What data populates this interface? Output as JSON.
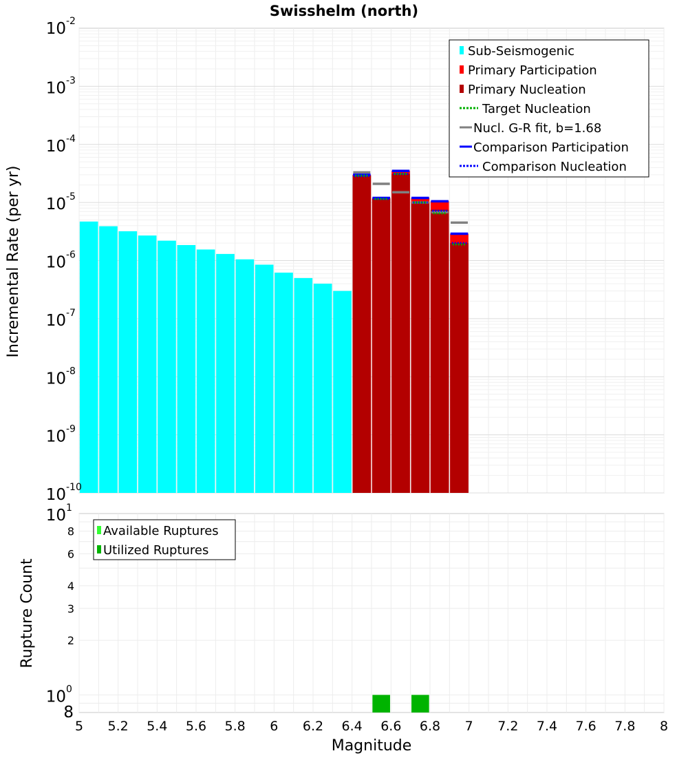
{
  "chart_data": [
    {
      "type": "bar",
      "title": "Swisshelm (north)",
      "xlabel": "",
      "ylabel": "Incremental Rate (per yr)",
      "xlim": [
        5,
        8
      ],
      "ylim": [
        1e-10,
        0.01
      ],
      "yscale": "log",
      "bin_width": 0.1,
      "y_ticks": [
        {
          "value": 0.01,
          "base": "10",
          "exp": "-2"
        },
        {
          "value": 0.001,
          "base": "10",
          "exp": "-3"
        },
        {
          "value": 0.0001,
          "base": "10",
          "exp": "-4"
        },
        {
          "value": 1e-05,
          "base": "10",
          "exp": "-5"
        },
        {
          "value": 1e-06,
          "base": "10",
          "exp": "-6"
        },
        {
          "value": 1e-07,
          "base": "10",
          "exp": "-7"
        },
        {
          "value": 1e-08,
          "base": "10",
          "exp": "-8"
        },
        {
          "value": 1e-09,
          "base": "10",
          "exp": "-9"
        },
        {
          "value": 1e-10,
          "base": "10",
          "exp": "-10"
        }
      ],
      "series": [
        {
          "name": "Sub-Seismogenic",
          "kind": "bar",
          "color": "#00ffff",
          "x": [
            5.05,
            5.15,
            5.25,
            5.35,
            5.45,
            5.55,
            5.65,
            5.75,
            5.85,
            5.95,
            6.05,
            6.15,
            6.25,
            6.35
          ],
          "values": [
            4.7e-06,
            3.9e-06,
            3.2e-06,
            2.7e-06,
            2.2e-06,
            1.85e-06,
            1.55e-06,
            1.3e-06,
            1.05e-06,
            8.5e-07,
            6.2e-07,
            5e-07,
            4e-07,
            3e-07
          ]
        },
        {
          "name": "Primary Participation",
          "kind": "bar",
          "color": "#ff0000",
          "x": [
            6.45,
            6.55,
            6.65,
            6.75,
            6.85,
            6.95
          ],
          "values": [
            3e-05,
            1.2e-05,
            3.5e-05,
            1.2e-05,
            1.05e-05,
            2.9e-06
          ]
        },
        {
          "name": "Primary Nucleation",
          "kind": "bar",
          "color": "#b30000",
          "x": [
            6.45,
            6.55,
            6.65,
            6.75,
            6.85,
            6.95
          ],
          "values": [
            2.9e-05,
            1.15e-05,
            3.1e-05,
            1e-05,
            7.5e-06,
            2e-06
          ]
        },
        {
          "name": "Target Nucleation",
          "kind": "dotted-tick",
          "color": "#00b000",
          "x": [
            6.45,
            6.55,
            6.65,
            6.75,
            6.85,
            6.95
          ],
          "values": [
            2.9e-05,
            1.15e-05,
            3.1e-05,
            1e-05,
            6.5e-06,
            1.9e-06
          ]
        },
        {
          "name": "Nucl. G-R fit, b=1.68",
          "kind": "tick",
          "color": "#808080",
          "x": [
            6.45,
            6.55,
            6.65,
            6.75,
            6.85,
            6.95
          ],
          "values": [
            3.3e-05,
            2.1e-05,
            1.5e-05,
            1e-05,
            6.8e-06,
            4.5e-06
          ]
        },
        {
          "name": "Comparison Participation",
          "kind": "tick",
          "color": "#0000ff",
          "x": [
            6.45,
            6.55,
            6.65,
            6.75,
            6.85,
            6.95
          ],
          "values": [
            3e-05,
            1.2e-05,
            3.5e-05,
            1.2e-05,
            1.05e-05,
            2.9e-06
          ]
        },
        {
          "name": "Comparison Nucleation",
          "kind": "dotted-tick",
          "color": "#0000ff",
          "x": [
            6.45,
            6.55,
            6.65,
            6.75,
            6.85,
            6.95
          ],
          "values": [
            2.85e-05,
            1.15e-05,
            3.1e-05,
            1e-05,
            7.2e-06,
            2e-06
          ]
        }
      ],
      "legend": [
        {
          "label": "Sub-Seismogenic",
          "color": "#00ffff",
          "symbol": "bar"
        },
        {
          "label": "Primary Participation",
          "color": "#ff0000",
          "symbol": "bar"
        },
        {
          "label": "Primary Nucleation",
          "color": "#b30000",
          "symbol": "bar"
        },
        {
          "label": "Target Nucleation",
          "color": "#00b000",
          "symbol": "dotted"
        },
        {
          "label": "Nucl. G-R fit, b=1.68",
          "color": "#808080",
          "symbol": "line"
        },
        {
          "label": "Comparison Participation",
          "color": "#0000ff",
          "symbol": "line"
        },
        {
          "label": "Comparison Nucleation",
          "color": "#0000ff",
          "symbol": "dotted"
        }
      ],
      "legend_position": "top-right",
      "grid": true
    },
    {
      "type": "bar",
      "title": "",
      "xlabel": "Magnitude",
      "ylabel": "Rupture Count",
      "xlim": [
        5,
        8
      ],
      "ylim": [
        0.8,
        10
      ],
      "yscale": "log",
      "x_ticks": [
        "5",
        "5.2",
        "5.4",
        "5.6",
        "5.8",
        "6",
        "6.2",
        "6.4",
        "6.6",
        "6.8",
        "7",
        "7.2",
        "7.4",
        "7.6",
        "7.8",
        "8"
      ],
      "y_ticks": [
        {
          "value": 10,
          "base": "10",
          "exp": "1"
        },
        {
          "value": 8,
          "label": "8"
        },
        {
          "value": 6,
          "label": "6"
        },
        {
          "value": 4,
          "label": "4"
        },
        {
          "value": 3,
          "label": "3"
        },
        {
          "value": 2,
          "label": "2"
        },
        {
          "value": 1,
          "base": "10",
          "exp": "0"
        },
        {
          "value": 0.8,
          "label": "8"
        }
      ],
      "series": [
        {
          "name": "Available Ruptures",
          "kind": "bar",
          "color": "#33ff33",
          "x": [
            6.55,
            6.75
          ],
          "values": [
            1,
            1
          ]
        },
        {
          "name": "Utilized Ruptures",
          "kind": "bar",
          "color": "#00b300",
          "x": [
            6.55,
            6.75
          ],
          "values": [
            1,
            1
          ]
        }
      ],
      "legend": [
        {
          "label": "Available Ruptures",
          "color": "#33ff33",
          "symbol": "bar"
        },
        {
          "label": "Utilized Ruptures",
          "color": "#00b300",
          "symbol": "bar"
        }
      ],
      "legend_position": "top-left",
      "grid": true
    }
  ]
}
